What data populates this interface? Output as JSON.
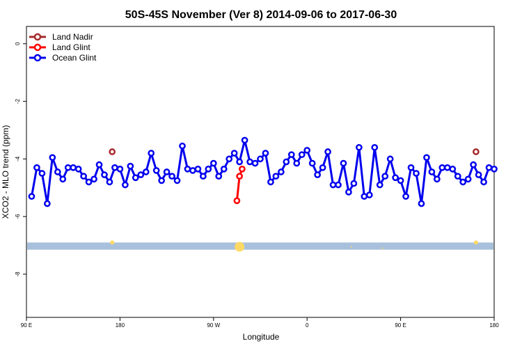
{
  "chart_data": {
    "type": "line",
    "title": "50S-45S November (Ver 8)   2014-09-06 to 2017-06-30",
    "xlabel": "Longitude",
    "ylabel": "XCO2 - MLO trend (ppm)",
    "xlim": [
      -270,
      -90
    ],
    "ylim": [
      -9.5,
      0.6
    ],
    "x_ticks": [
      {
        "value": -270,
        "label": "90 E"
      },
      {
        "value": -234,
        "label": "180"
      },
      {
        "value": -198,
        "label": "90 W"
      },
      {
        "value": -162,
        "label": "0"
      },
      {
        "value": -126,
        "label": "90 E"
      },
      {
        "value": -90,
        "label": "180"
      }
    ],
    "y_ticks": [
      0,
      -2,
      -4,
      -6,
      -8
    ],
    "legend": {
      "placement": "top-left"
    },
    "series": [
      {
        "name": "Land Nadir",
        "color": "#a52a2a",
        "x": [
          -237,
          -97
        ],
        "y": [
          -3.75,
          -3.75
        ]
      },
      {
        "name": "Land Glint",
        "color": "#ff0000",
        "x": [
          -189,
          -188,
          -187
        ],
        "y": [
          -5.45,
          -4.6,
          -4.35
        ]
      },
      {
        "name": "Ocean Glint",
        "color": "#0000ee",
        "x": [
          -268,
          -266,
          -264,
          -262,
          -260,
          -258,
          -256,
          -254,
          -252,
          -250,
          -248,
          -246,
          -244,
          -242,
          -240,
          -238,
          -236,
          -234,
          -232,
          -230,
          -228,
          -226,
          -224,
          -222,
          -220,
          -218,
          -216,
          -214,
          -212,
          -210,
          -208,
          -206,
          -204,
          -202,
          -200,
          -198,
          -196,
          -194,
          -192,
          -190,
          -188,
          -186,
          -184,
          -182,
          -180,
          -178,
          -176,
          -174,
          -172,
          -170,
          -168,
          -166,
          -164,
          -162,
          -160,
          -158,
          -156,
          -154,
          -152,
          -150,
          -148,
          -146,
          -144,
          -142,
          -140,
          -138,
          -136,
          -134,
          -132,
          -130,
          -128,
          -126,
          -124,
          -122,
          -120,
          -118,
          -116,
          -114,
          -112,
          -110,
          -108,
          -106,
          -104,
          -102,
          -100,
          -98,
          -96,
          -94,
          -92,
          -90
        ],
        "y": [
          -5.3,
          -4.3,
          -4.5,
          -5.55,
          -3.95,
          -4.45,
          -4.7,
          -4.3,
          -4.3,
          -4.35,
          -4.6,
          -4.8,
          -4.7,
          -4.2,
          -4.55,
          -4.8,
          -4.3,
          -4.35,
          -4.9,
          -4.25,
          -4.65,
          -4.55,
          -4.45,
          -3.8,
          -4.4,
          -4.75,
          -4.45,
          -4.6,
          -4.75,
          -3.55,
          -4.35,
          -4.4,
          -4.35,
          -4.6,
          -4.35,
          -4.15,
          -4.6,
          -4.35,
          -4.0,
          -3.8,
          -4.1,
          -3.35,
          -4.1,
          -4.15,
          -4.0,
          -3.8,
          -4.8,
          -4.6,
          -4.45,
          -4.1,
          -3.85,
          -4.15,
          -3.85,
          -3.7,
          -4.15,
          -4.55,
          -4.3,
          -3.75,
          -4.9,
          -4.9,
          -4.15,
          -5.15,
          -4.85,
          -3.6,
          -5.3,
          -5.25,
          -3.6,
          -4.9,
          -4.6,
          -4.0,
          -4.65,
          -4.75,
          -5.3,
          -4.3,
          -4.5,
          -5.55,
          -3.95,
          -4.45,
          -4.7,
          -4.3,
          -4.3,
          -4.35,
          -4.6,
          -4.8,
          -4.7,
          -4.2,
          -4.55,
          -4.8,
          -4.3,
          -4.35
        ]
      }
    ],
    "band": {
      "y_range": [
        -7.15,
        -6.9
      ],
      "color": "#a8c0dc",
      "markers": [
        {
          "x": -237,
          "y": -6.9,
          "size": 3
        },
        {
          "x": -188,
          "y": -7.05,
          "size": 7
        },
        {
          "x": -145,
          "y": -7.05,
          "size": 1
        },
        {
          "x": -133,
          "y": -7.1,
          "size": 1
        },
        {
          "x": -97,
          "y": -6.9,
          "size": 3
        }
      ],
      "marker_color": "#ffd966"
    }
  }
}
